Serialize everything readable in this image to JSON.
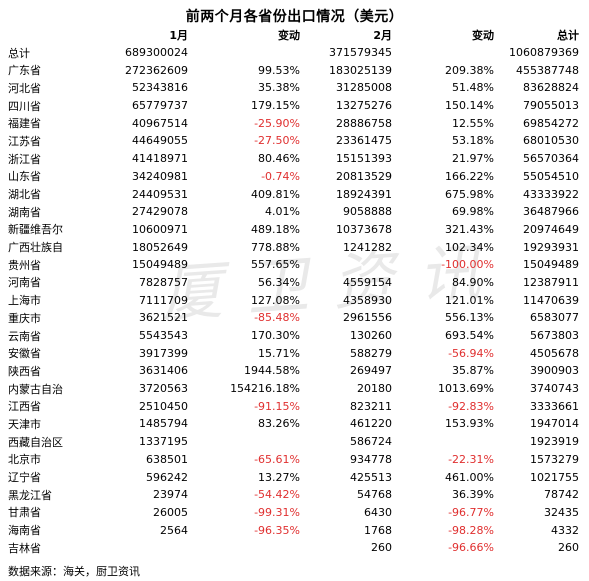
{
  "title": "前两个月各省份出口情况（美元）",
  "watermark": "厦卫资讯",
  "columns": [
    "1月",
    "变动",
    "2月",
    "变动",
    "总计"
  ],
  "rows": [
    {
      "name": "总计",
      "m1": "689300024",
      "ch1": "",
      "m2": "371579345",
      "ch2": "",
      "total": "1060879369"
    },
    {
      "name": "广东省",
      "m1": "272362609",
      "ch1": "99.53%",
      "m2": "183025139",
      "ch2": "209.38%",
      "total": "455387748"
    },
    {
      "name": "河北省",
      "m1": "52343816",
      "ch1": "35.38%",
      "m2": "31285008",
      "ch2": "51.48%",
      "total": "83628824"
    },
    {
      "name": "四川省",
      "m1": "65779737",
      "ch1": "179.15%",
      "m2": "13275276",
      "ch2": "150.14%",
      "total": "79055013"
    },
    {
      "name": "福建省",
      "m1": "40967514",
      "ch1": "-25.90%",
      "m2": "28886758",
      "ch2": "12.55%",
      "total": "69854272"
    },
    {
      "name": "江苏省",
      "m1": "44649055",
      "ch1": "-27.50%",
      "m2": "23361475",
      "ch2": "53.18%",
      "total": "68010530"
    },
    {
      "name": "浙江省",
      "m1": "41418971",
      "ch1": "80.46%",
      "m2": "15151393",
      "ch2": "21.97%",
      "total": "56570364"
    },
    {
      "name": "山东省",
      "m1": "34240981",
      "ch1": "-0.74%",
      "m2": "20813529",
      "ch2": "166.22%",
      "total": "55054510"
    },
    {
      "name": "湖北省",
      "m1": "24409531",
      "ch1": "409.81%",
      "m2": "18924391",
      "ch2": "675.98%",
      "total": "43333922"
    },
    {
      "name": "湖南省",
      "m1": "27429078",
      "ch1": "4.01%",
      "m2": "9058888",
      "ch2": "69.98%",
      "total": "36487966"
    },
    {
      "name": "新疆维吾尔",
      "m1": "10600971",
      "ch1": "489.18%",
      "m2": "10373678",
      "ch2": "321.43%",
      "total": "20974649"
    },
    {
      "name": "广西壮族自",
      "m1": "18052649",
      "ch1": "778.88%",
      "m2": "1241282",
      "ch2": "102.34%",
      "total": "19293931"
    },
    {
      "name": "贵州省",
      "m1": "15049489",
      "ch1": "557.65%",
      "m2": "",
      "ch2": "-100.00%",
      "total": "15049489"
    },
    {
      "name": "河南省",
      "m1": "7828757",
      "ch1": "56.34%",
      "m2": "4559154",
      "ch2": "84.90%",
      "total": "12387911"
    },
    {
      "name": "上海市",
      "m1": "7111709",
      "ch1": "127.08%",
      "m2": "4358930",
      "ch2": "121.01%",
      "total": "11470639"
    },
    {
      "name": "重庆市",
      "m1": "3621521",
      "ch1": "-85.48%",
      "m2": "2961556",
      "ch2": "556.13%",
      "total": "6583077"
    },
    {
      "name": "云南省",
      "m1": "5543543",
      "ch1": "170.30%",
      "m2": "130260",
      "ch2": "693.54%",
      "total": "5673803"
    },
    {
      "name": "安徽省",
      "m1": "3917399",
      "ch1": "15.71%",
      "m2": "588279",
      "ch2": "-56.94%",
      "total": "4505678"
    },
    {
      "name": "陕西省",
      "m1": "3631406",
      "ch1": "1944.58%",
      "m2": "269497",
      "ch2": "35.87%",
      "total": "3900903"
    },
    {
      "name": "内蒙古自治",
      "m1": "3720563",
      "ch1": "154216.18%",
      "m2": "20180",
      "ch2": "1013.69%",
      "total": "3740743"
    },
    {
      "name": "江西省",
      "m1": "2510450",
      "ch1": "-91.15%",
      "m2": "823211",
      "ch2": "-92.83%",
      "total": "3333661"
    },
    {
      "name": "天津市",
      "m1": "1485794",
      "ch1": "83.26%",
      "m2": "461220",
      "ch2": "153.93%",
      "total": "1947014"
    },
    {
      "name": "西藏自治区",
      "m1": "1337195",
      "ch1": "",
      "m2": "586724",
      "ch2": "",
      "total": "1923919"
    },
    {
      "name": "北京市",
      "m1": "638501",
      "ch1": "-65.61%",
      "m2": "934778",
      "ch2": "-22.31%",
      "total": "1573279"
    },
    {
      "name": "辽宁省",
      "m1": "596242",
      "ch1": "13.27%",
      "m2": "425513",
      "ch2": "461.00%",
      "total": "1021755"
    },
    {
      "name": "黑龙江省",
      "m1": "23974",
      "ch1": "-54.42%",
      "m2": "54768",
      "ch2": "36.39%",
      "total": "78742"
    },
    {
      "name": "甘肃省",
      "m1": "26005",
      "ch1": "-99.31%",
      "m2": "6430",
      "ch2": "-96.77%",
      "total": "32435"
    },
    {
      "name": "海南省",
      "m1": "2564",
      "ch1": "-96.35%",
      "m2": "1768",
      "ch2": "-98.28%",
      "total": "4332"
    },
    {
      "name": "吉林省",
      "m1": "",
      "ch1": "",
      "m2": "260",
      "ch2": "-96.66%",
      "total": "260"
    }
  ],
  "footer": "数据来源：海关，厨卫资讯",
  "colors": {
    "negative": "#e03030",
    "text": "#000000",
    "watermark": "#e9e9e9"
  }
}
